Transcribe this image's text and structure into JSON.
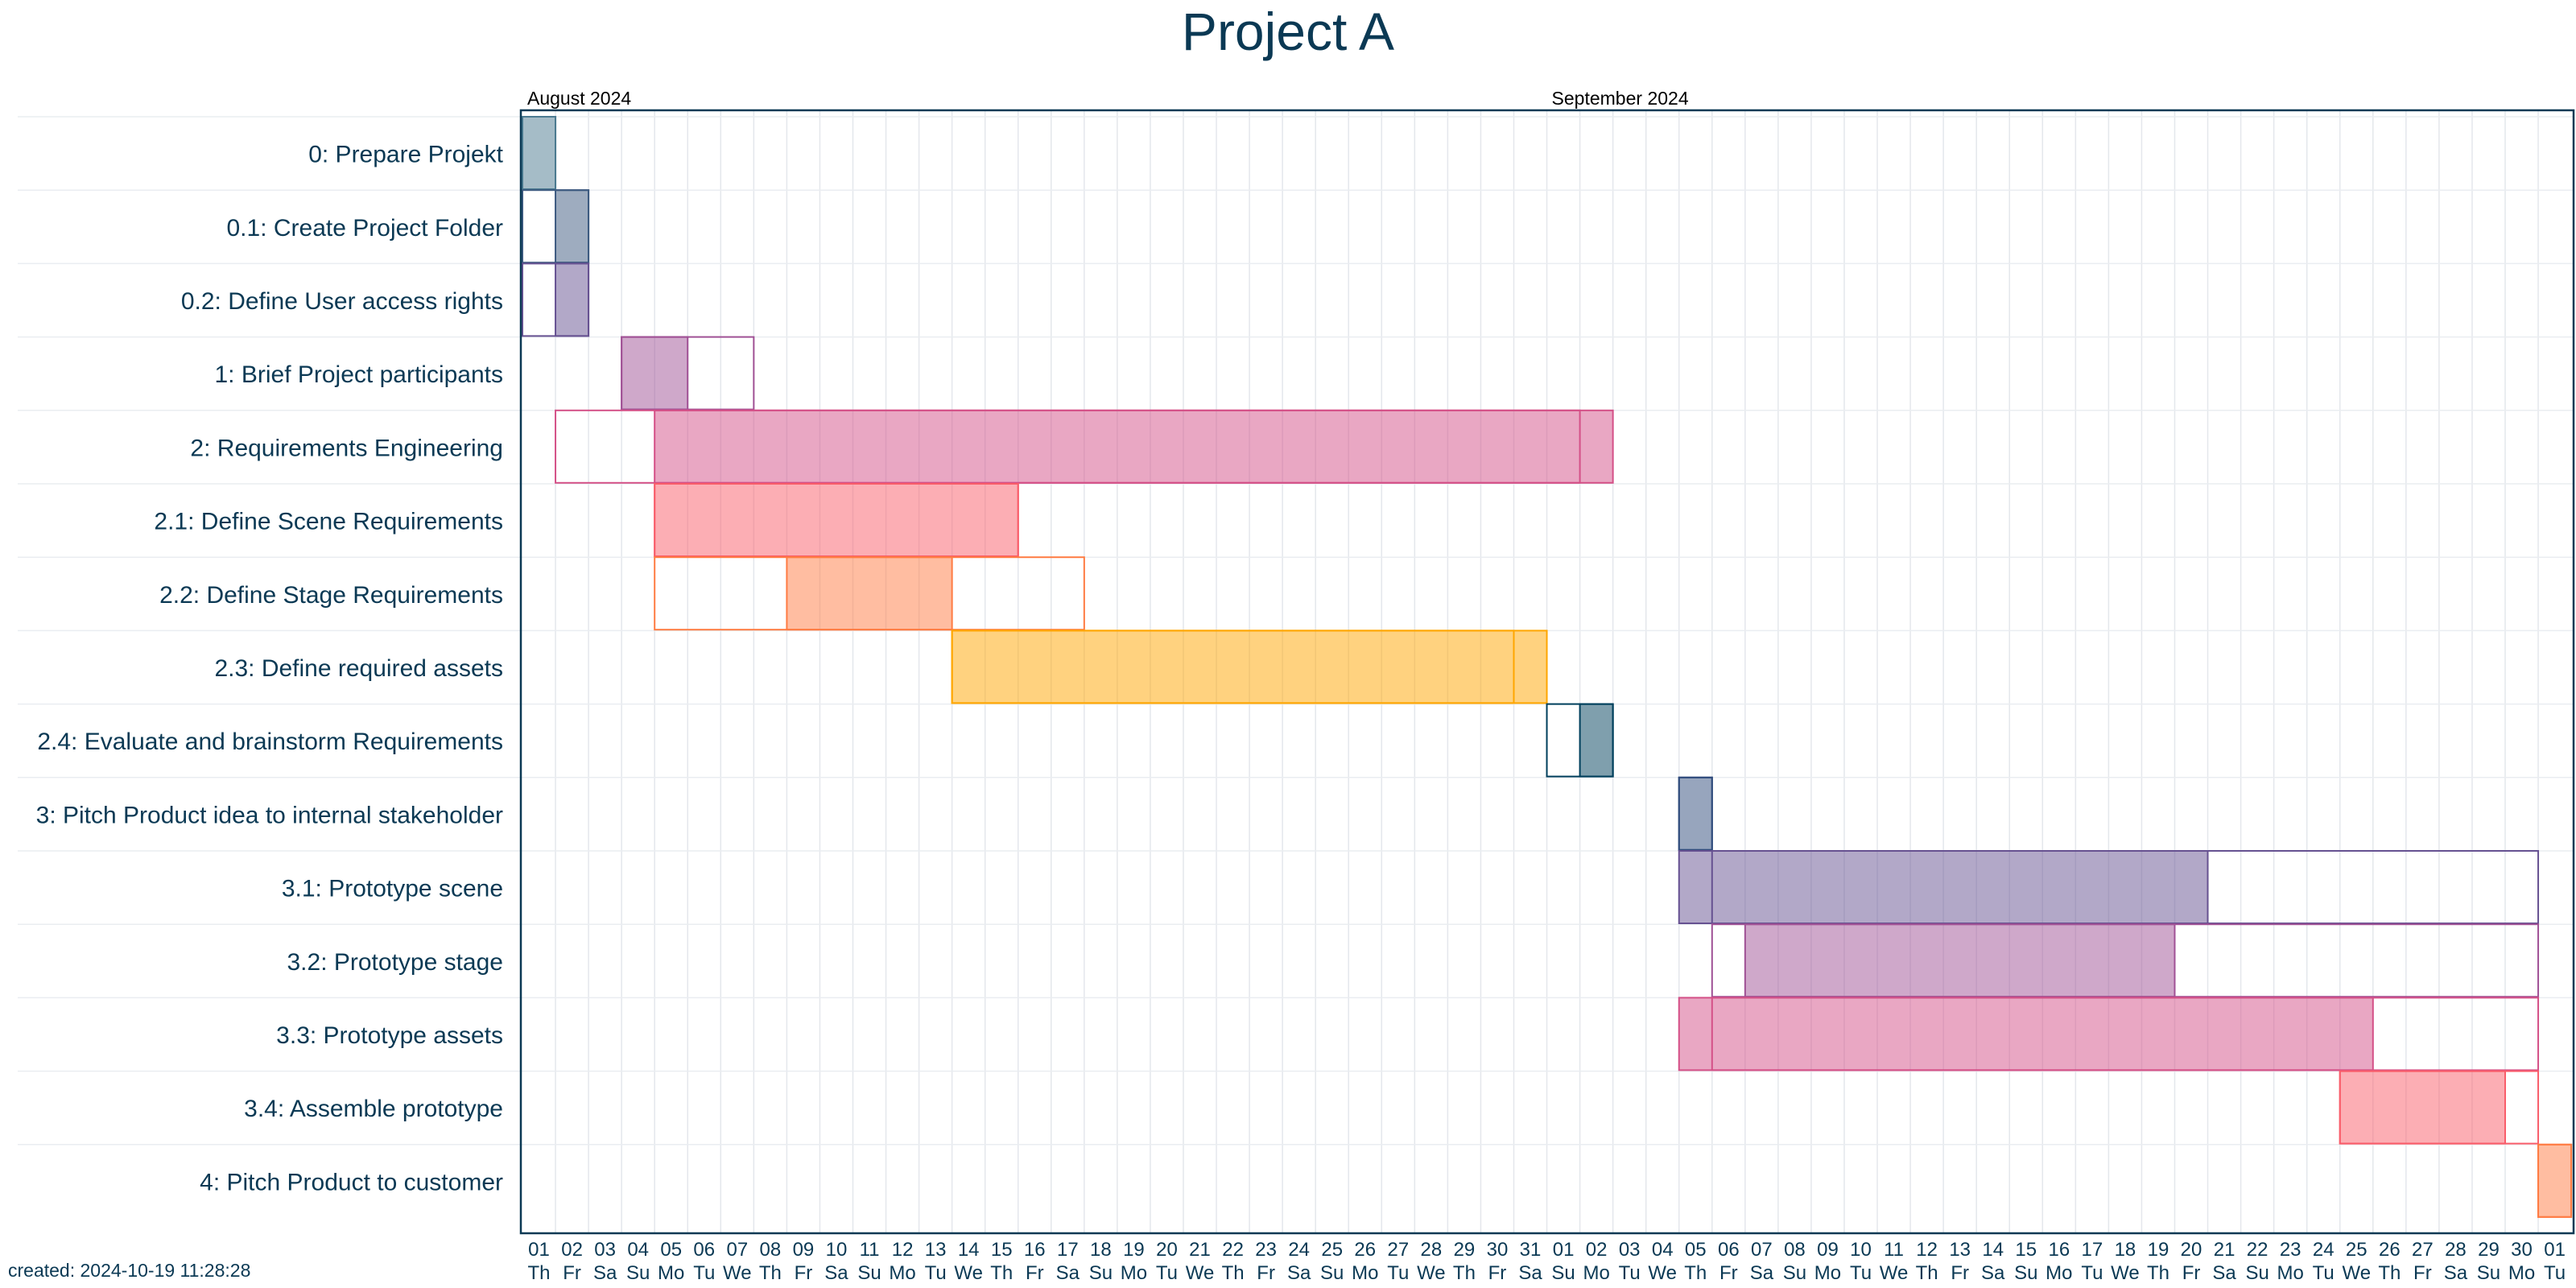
{
  "title": "Project A",
  "footer": "created: 2024-10-19 11:28:28",
  "colors": {
    "text": "#0b3954",
    "frame": "#0b3954",
    "grid": "#e4e7ec",
    "row_line": "#eaedf1"
  },
  "chart_data": {
    "type": "gantt",
    "title": "Project A",
    "date_range": {
      "start": "2024-08-01",
      "end": "2024-10-01"
    },
    "months": [
      {
        "label": "August 2024",
        "start": "2024-08-01"
      },
      {
        "label": "September 2024",
        "start": "2024-09-01"
      }
    ],
    "day_numbers": [
      "01",
      "02",
      "03",
      "04",
      "05",
      "06",
      "07",
      "08",
      "09",
      "10",
      "11",
      "12",
      "13",
      "14",
      "15",
      "16",
      "17",
      "18",
      "19",
      "20",
      "21",
      "22",
      "23",
      "24",
      "25",
      "26",
      "27",
      "28",
      "29",
      "30",
      "31",
      "01",
      "02",
      "03",
      "04",
      "05",
      "06",
      "07",
      "08",
      "09",
      "10",
      "11",
      "12",
      "13",
      "14",
      "15",
      "16",
      "17",
      "18",
      "19",
      "20",
      "21",
      "22",
      "23",
      "24",
      "25",
      "26",
      "27",
      "28",
      "29",
      "30",
      "01"
    ],
    "weekdays": [
      "Th",
      "Fr",
      "Sa",
      "Su",
      "Mo",
      "Tu",
      "We",
      "Th",
      "Fr",
      "Sa",
      "Su",
      "Mo",
      "Tu",
      "We",
      "Th",
      "Fr",
      "Sa",
      "Su",
      "Mo",
      "Tu",
      "We",
      "Th",
      "Fr",
      "Sa",
      "Su",
      "Mo",
      "Tu",
      "We",
      "Th",
      "Fr",
      "Sa",
      "Su",
      "Mo",
      "Tu",
      "We",
      "Th",
      "Fr",
      "Sa",
      "Su",
      "Mo",
      "Tu",
      "We",
      "Th",
      "Fr",
      "Sa",
      "Su",
      "Mo",
      "Tu",
      "We",
      "Th",
      "Fr",
      "Sa",
      "Su",
      "Mo",
      "Tu",
      "We",
      "Th",
      "Fr",
      "Sa",
      "Su",
      "Mo",
      "Tu"
    ],
    "tasks": [
      {
        "label": "0: Prepare Projekt",
        "color": "#4b7a90",
        "planned": [
          "2024-08-01",
          "2024-08-01"
        ],
        "progress": [
          "2024-08-01",
          "2024-08-01"
        ]
      },
      {
        "label": "0.1: Create Project Folder",
        "color": "#3d5a80",
        "planned": [
          "2024-08-01",
          "2024-08-02"
        ],
        "progress": [
          "2024-08-02",
          "2024-08-02"
        ]
      },
      {
        "label": "0.2: Define User access rights",
        "color": "#665191",
        "planned": [
          "2024-08-01",
          "2024-08-02"
        ],
        "progress": [
          "2024-08-02",
          "2024-08-02"
        ]
      },
      {
        "label": "1: Brief Project participants",
        "color": "#a05195",
        "planned": [
          "2024-08-04",
          "2024-08-07"
        ],
        "progress": [
          "2024-08-04",
          "2024-08-05"
        ]
      },
      {
        "label": "2: Requirements Engineering",
        "color": "#d45087",
        "planned": [
          "2024-08-02",
          "2024-09-01"
        ],
        "progress": [
          "2024-08-05",
          "2024-09-02"
        ]
      },
      {
        "label": "2.1: Define Scene Requirements",
        "color": "#f95d6a",
        "planned": [
          "2024-08-05",
          "2024-08-15"
        ],
        "progress": [
          "2024-08-05",
          "2024-08-15"
        ]
      },
      {
        "label": "2.2: Define Stage Requirements",
        "color": "#ff7c43",
        "planned": [
          "2024-08-05",
          "2024-08-17"
        ],
        "progress": [
          "2024-08-09",
          "2024-08-13"
        ]
      },
      {
        "label": "2.3: Define required assets",
        "color": "#ffa600",
        "planned": [
          "2024-08-14",
          "2024-08-30"
        ],
        "progress": [
          "2024-08-14",
          "2024-08-31"
        ]
      },
      {
        "label": "2.4: Evaluate and brainstorm Requirements",
        "color": "#003f5c",
        "planned": [
          "2024-09-01",
          "2024-09-02"
        ],
        "progress": [
          "2024-09-02",
          "2024-09-02"
        ]
      },
      {
        "label": "3: Pitch Product idea to internal stakeholder",
        "color": "#2f4b7c",
        "planned": [
          "2024-09-05",
          "2024-09-05"
        ],
        "progress": [
          "2024-09-05",
          "2024-09-05"
        ]
      },
      {
        "label": "3.1: Prototype scene",
        "color": "#665191",
        "planned": [
          "2024-09-06",
          "2024-09-30"
        ],
        "progress": [
          "2024-09-05",
          "2024-09-20"
        ]
      },
      {
        "label": "3.2: Prototype stage",
        "color": "#a05195",
        "planned": [
          "2024-09-06",
          "2024-09-30"
        ],
        "progress": [
          "2024-09-07",
          "2024-09-19"
        ]
      },
      {
        "label": "3.3: Prototype assets",
        "color": "#d45087",
        "planned": [
          "2024-09-06",
          "2024-09-30"
        ],
        "progress": [
          "2024-09-05",
          "2024-09-25"
        ]
      },
      {
        "label": "3.4: Assemble prototype",
        "color": "#f95d6a",
        "planned": [
          "2024-09-25",
          "2024-09-30"
        ],
        "progress": [
          "2024-09-25",
          "2024-09-29"
        ]
      },
      {
        "label": "4: Pitch Product to customer",
        "color": "#ff7c43",
        "planned": [
          "2024-10-01",
          "2024-10-01"
        ],
        "progress": [
          "2024-10-01",
          "2024-10-01"
        ]
      }
    ]
  }
}
